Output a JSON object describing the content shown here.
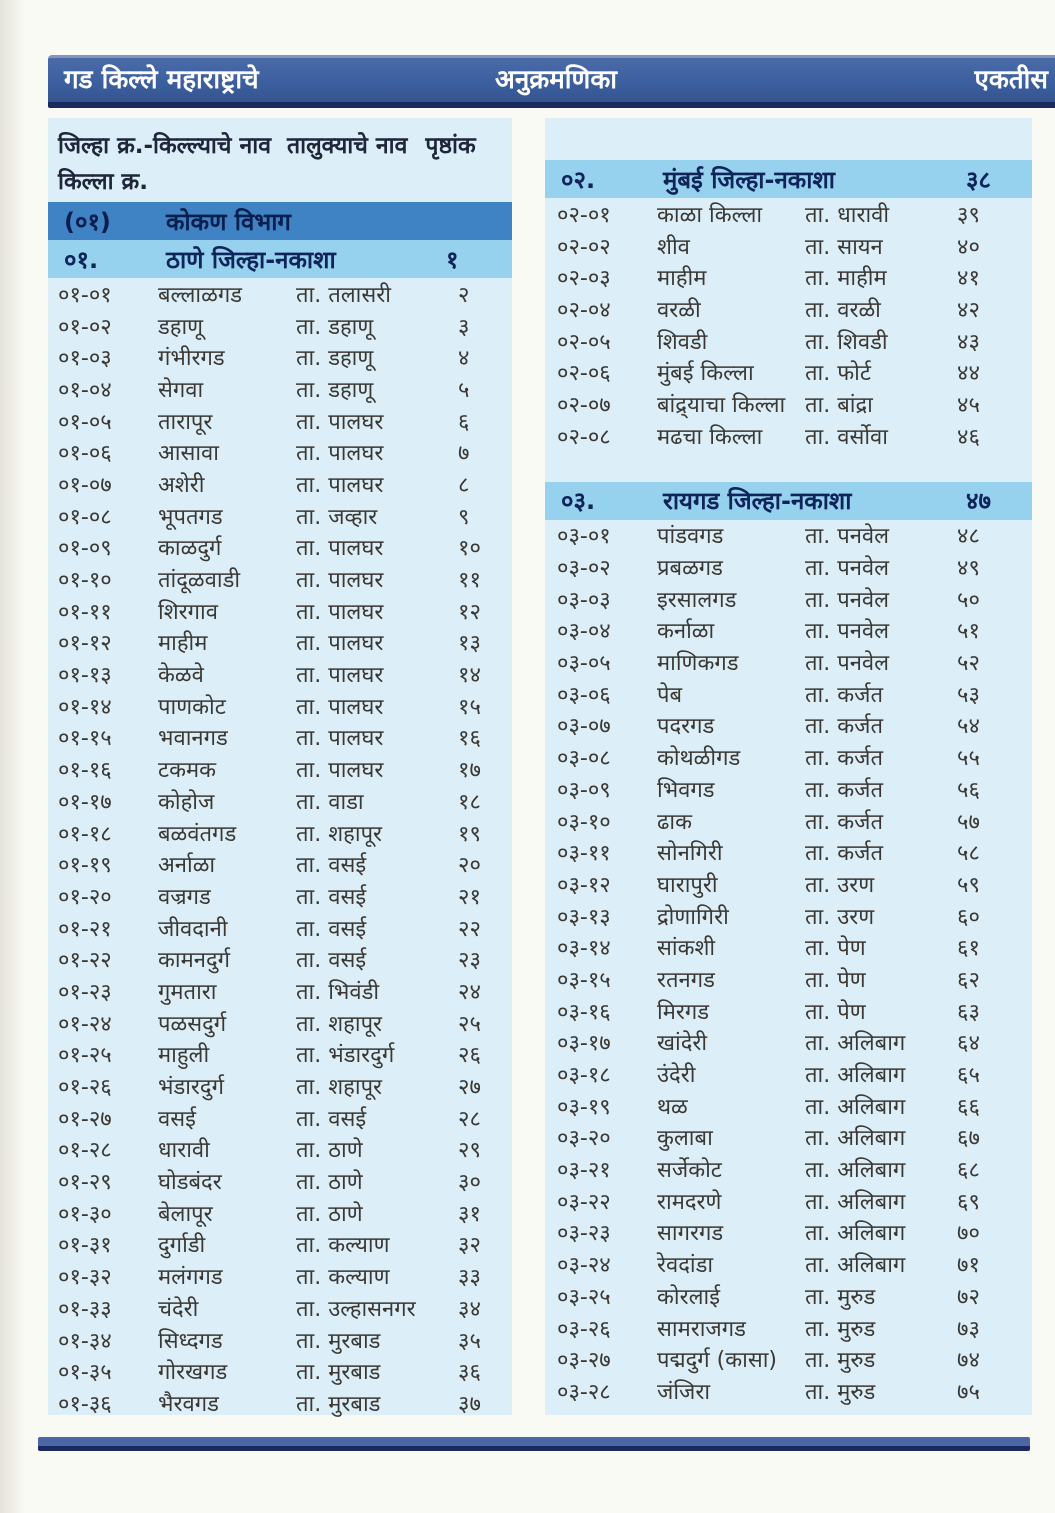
{
  "book": {
    "title": "गड किल्ले महाराष्ट्राचे",
    "page_heading": "अनुक्रमणिका",
    "page_number_word": "एकतीस"
  },
  "col_headers": {
    "line1_a": "जिल्हा क्र.-किल्ल्याचे नाव",
    "line1_b": "तालुक्याचे नाव",
    "line1_c": "पृष्ठांक",
    "line2": "किल्ला क्र."
  },
  "division": {
    "code": "(०१)",
    "label": "कोकण विभाग"
  },
  "sections": [
    {
      "code": "०१.",
      "title": "ठाणे जिल्हा-नकाशा",
      "page": "१",
      "column": "left",
      "rows": [
        {
          "code": "०१-०१",
          "fort": "बल्लाळगड",
          "taluka": "ता. तलासरी",
          "page": "२"
        },
        {
          "code": "०१-०२",
          "fort": "डहाणू",
          "taluka": "ता. डहाणू",
          "page": "३"
        },
        {
          "code": "०१-०३",
          "fort": "गंभीरगड",
          "taluka": "ता. डहाणू",
          "page": "४"
        },
        {
          "code": "०१-०४",
          "fort": "सेगवा",
          "taluka": "ता. डहाणू",
          "page": "५"
        },
        {
          "code": "०१-०५",
          "fort": "तारापूर",
          "taluka": "ता. पालघर",
          "page": "६"
        },
        {
          "code": "०१-०६",
          "fort": "आसावा",
          "taluka": "ता. पालघर",
          "page": "७"
        },
        {
          "code": "०१-०७",
          "fort": "अशेरी",
          "taluka": "ता. पालघर",
          "page": "८"
        },
        {
          "code": "०१-०८",
          "fort": "भूपतगड",
          "taluka": "ता. जव्हार",
          "page": "९"
        },
        {
          "code": "०१-०९",
          "fort": "काळदुर्ग",
          "taluka": "ता. पालघर",
          "page": "१०"
        },
        {
          "code": "०१-१०",
          "fort": "तांदूळवाडी",
          "taluka": "ता. पालघर",
          "page": "११"
        },
        {
          "code": "०१-११",
          "fort": "शिरगाव",
          "taluka": "ता. पालघर",
          "page": "१२"
        },
        {
          "code": "०१-१२",
          "fort": "माहीम",
          "taluka": "ता. पालघर",
          "page": "१३"
        },
        {
          "code": "०१-१३",
          "fort": "केळवे",
          "taluka": "ता. पालघर",
          "page": "१४"
        },
        {
          "code": "०१-१४",
          "fort": "पाणकोट",
          "taluka": "ता. पालघर",
          "page": "१५"
        },
        {
          "code": "०१-१५",
          "fort": "भवानगड",
          "taluka": "ता. पालघर",
          "page": "१६"
        },
        {
          "code": "०१-१६",
          "fort": "टकमक",
          "taluka": "ता. पालघर",
          "page": "१७"
        },
        {
          "code": "०१-१७",
          "fort": "कोहोज",
          "taluka": "ता. वाडा",
          "page": "१८"
        },
        {
          "code": "०१-१८",
          "fort": "बळवंतगड",
          "taluka": "ता. शहापूर",
          "page": "१९"
        },
        {
          "code": "०१-१९",
          "fort": "अर्नाळा",
          "taluka": "ता. वसई",
          "page": "२०"
        },
        {
          "code": "०१-२०",
          "fort": "वज्रगड",
          "taluka": "ता. वसई",
          "page": "२१"
        },
        {
          "code": "०१-२१",
          "fort": "जीवदानी",
          "taluka": "ता. वसई",
          "page": "२२"
        },
        {
          "code": "०१-२२",
          "fort": "कामनदुर्ग",
          "taluka": "ता. वसई",
          "page": "२३"
        },
        {
          "code": "०१-२३",
          "fort": "गुमतारा",
          "taluka": "ता. भिवंडी",
          "page": "२४"
        },
        {
          "code": "०१-२४",
          "fort": "पळसदुर्ग",
          "taluka": "ता. शहापूर",
          "page": "२५"
        },
        {
          "code": "०१-२५",
          "fort": "माहुली",
          "taluka": "ता. भंडारदुर्ग",
          "page": "२६"
        },
        {
          "code": "०१-२६",
          "fort": "भंडारदुर्ग",
          "taluka": "ता. शहापूर",
          "page": "२७"
        },
        {
          "code": "०१-२७",
          "fort": "वसई",
          "taluka": "ता. वसई",
          "page": "२८"
        },
        {
          "code": "०१-२८",
          "fort": "धारावी",
          "taluka": "ता. ठाणे",
          "page": "२९"
        },
        {
          "code": "०१-२९",
          "fort": "घोडबंदर",
          "taluka": "ता. ठाणे",
          "page": "३०"
        },
        {
          "code": "०१-३०",
          "fort": "बेलापूर",
          "taluka": "ता. ठाणे",
          "page": "३१"
        },
        {
          "code": "०१-३१",
          "fort": "दुर्गाडी",
          "taluka": "ता. कल्याण",
          "page": "३२"
        },
        {
          "code": "०१-३२",
          "fort": "मलंगगड",
          "taluka": "ता. कल्याण",
          "page": "३३"
        },
        {
          "code": "०१-३३",
          "fort": "चंदेरी",
          "taluka": "ता. उल्हासनगर",
          "page": "३४"
        },
        {
          "code": "०१-३४",
          "fort": "सिध्दगड",
          "taluka": "ता. मुरबाड",
          "page": "३५"
        },
        {
          "code": "०१-३५",
          "fort": "गोरखगड",
          "taluka": "ता. मुरबाड",
          "page": "३६"
        },
        {
          "code": "०१-३६",
          "fort": "भैरवगड",
          "taluka": "ता. मुरबाड",
          "page": "३७"
        }
      ]
    },
    {
      "code": "०२.",
      "title": "मुंबई जिल्हा-नकाशा",
      "page": "३८",
      "column": "right",
      "rows": [
        {
          "code": "०२-०१",
          "fort": "काळा किल्ला",
          "taluka": "ता. धारावी",
          "page": "३९"
        },
        {
          "code": "०२-०२",
          "fort": "शीव",
          "taluka": "ता. सायन",
          "page": "४०"
        },
        {
          "code": "०२-०३",
          "fort": "माहीम",
          "taluka": "ता. माहीम",
          "page": "४१"
        },
        {
          "code": "०२-०४",
          "fort": "वरळी",
          "taluka": "ता. वरळी",
          "page": "४२"
        },
        {
          "code": "०२-०५",
          "fort": "शिवडी",
          "taluka": "ता. शिवडी",
          "page": "४३"
        },
        {
          "code": "०२-०६",
          "fort": "मुंबई किल्ला",
          "taluka": "ता. फोर्ट",
          "page": "४४"
        },
        {
          "code": "०२-०७",
          "fort": "बांद्र्याचा किल्ला",
          "taluka": "ता. बांद्रा",
          "page": "४५"
        },
        {
          "code": "०२-०८",
          "fort": "मढचा किल्ला",
          "taluka": "ता. वर्सोवा",
          "page": "४६"
        }
      ]
    },
    {
      "code": "०३.",
      "title": "रायगड जिल्हा-नकाशा",
      "page": "४७",
      "column": "right",
      "rows": [
        {
          "code": "०३-०१",
          "fort": "पांडवगड",
          "taluka": "ता. पनवेल",
          "page": "४८"
        },
        {
          "code": "०३-०२",
          "fort": "प्रबळगड",
          "taluka": "ता. पनवेल",
          "page": "४९"
        },
        {
          "code": "०३-०३",
          "fort": "इरसालगड",
          "taluka": "ता. पनवेल",
          "page": "५०"
        },
        {
          "code": "०३-०४",
          "fort": "कर्नाळा",
          "taluka": "ता. पनवेल",
          "page": "५१"
        },
        {
          "code": "०३-०५",
          "fort": "माणिकगड",
          "taluka": "ता. पनवेल",
          "page": "५२"
        },
        {
          "code": "०३-०६",
          "fort": "पेब",
          "taluka": "ता. कर्जत",
          "page": "५३"
        },
        {
          "code": "०३-०७",
          "fort": "पदरगड",
          "taluka": "ता. कर्जत",
          "page": "५४"
        },
        {
          "code": "०३-०८",
          "fort": "कोथळीगड",
          "taluka": "ता. कर्जत",
          "page": "५५"
        },
        {
          "code": "०३-०९",
          "fort": "भिवगड",
          "taluka": "ता. कर्जत",
          "page": "५६"
        },
        {
          "code": "०३-१०",
          "fort": "ढाक",
          "taluka": "ता. कर्जत",
          "page": "५७"
        },
        {
          "code": "०३-११",
          "fort": "सोनगिरी",
          "taluka": "ता. कर्जत",
          "page": "५८"
        },
        {
          "code": "०३-१२",
          "fort": "घारापुरी",
          "taluka": "ता. उरण",
          "page": "५९"
        },
        {
          "code": "०३-१३",
          "fort": "द्रोणागिरी",
          "taluka": "ता. उरण",
          "page": "६०"
        },
        {
          "code": "०३-१४",
          "fort": "सांकशी",
          "taluka": "ता. पेण",
          "page": "६१"
        },
        {
          "code": "०३-१५",
          "fort": "रतनगड",
          "taluka": "ता. पेण",
          "page": "६२"
        },
        {
          "code": "०३-१६",
          "fort": "मिरगड",
          "taluka": "ता. पेण",
          "page": "६३"
        },
        {
          "code": "०३-१७",
          "fort": "खांदेरी",
          "taluka": "ता. अलिबाग",
          "page": "६४"
        },
        {
          "code": "०३-१८",
          "fort": "उंदेरी",
          "taluka": "ता. अलिबाग",
          "page": "६५"
        },
        {
          "code": "०३-१९",
          "fort": "थळ",
          "taluka": "ता. अलिबाग",
          "page": "६६"
        },
        {
          "code": "०३-२०",
          "fort": "कुलाबा",
          "taluka": "ता. अलिबाग",
          "page": "६७"
        },
        {
          "code": "०३-२१",
          "fort": "सर्जेकोट",
          "taluka": "ता. अलिबाग",
          "page": "६८"
        },
        {
          "code": "०३-२२",
          "fort": "रामदरणे",
          "taluka": "ता. अलिबाग",
          "page": "६९"
        },
        {
          "code": "०३-२३",
          "fort": "सागरगड",
          "taluka": "ता. अलिबाग",
          "page": "७०"
        },
        {
          "code": "०३-२४",
          "fort": "रेवदांडा",
          "taluka": "ता. अलिबाग",
          "page": "७१"
        },
        {
          "code": "०३-२५",
          "fort": "कोरलाई",
          "taluka": "ता. मुरुड",
          "page": "७२"
        },
        {
          "code": "०३-२६",
          "fort": "सामराजगड",
          "taluka": "ता. मुरुड",
          "page": "७३"
        },
        {
          "code": "०३-२७",
          "fort": "पद्मदुर्ग (कासा)",
          "taluka": "ता. मुरुड",
          "page": "७४"
        },
        {
          "code": "०३-२८",
          "fort": "जंजिरा",
          "taluka": "ता. मुरुड",
          "page": "७५"
        }
      ]
    }
  ],
  "colors": {
    "topbar_bg": "#3c5f9f",
    "topbar_edge": "#1a2a5e",
    "panel_bg": "#dceff8",
    "division_band_bg": "#3f83c5",
    "district_band_bg": "#96d1ee",
    "band_text": "#0f2459",
    "row_text": "#3b3833",
    "footer_bar": "#4b68a6"
  }
}
